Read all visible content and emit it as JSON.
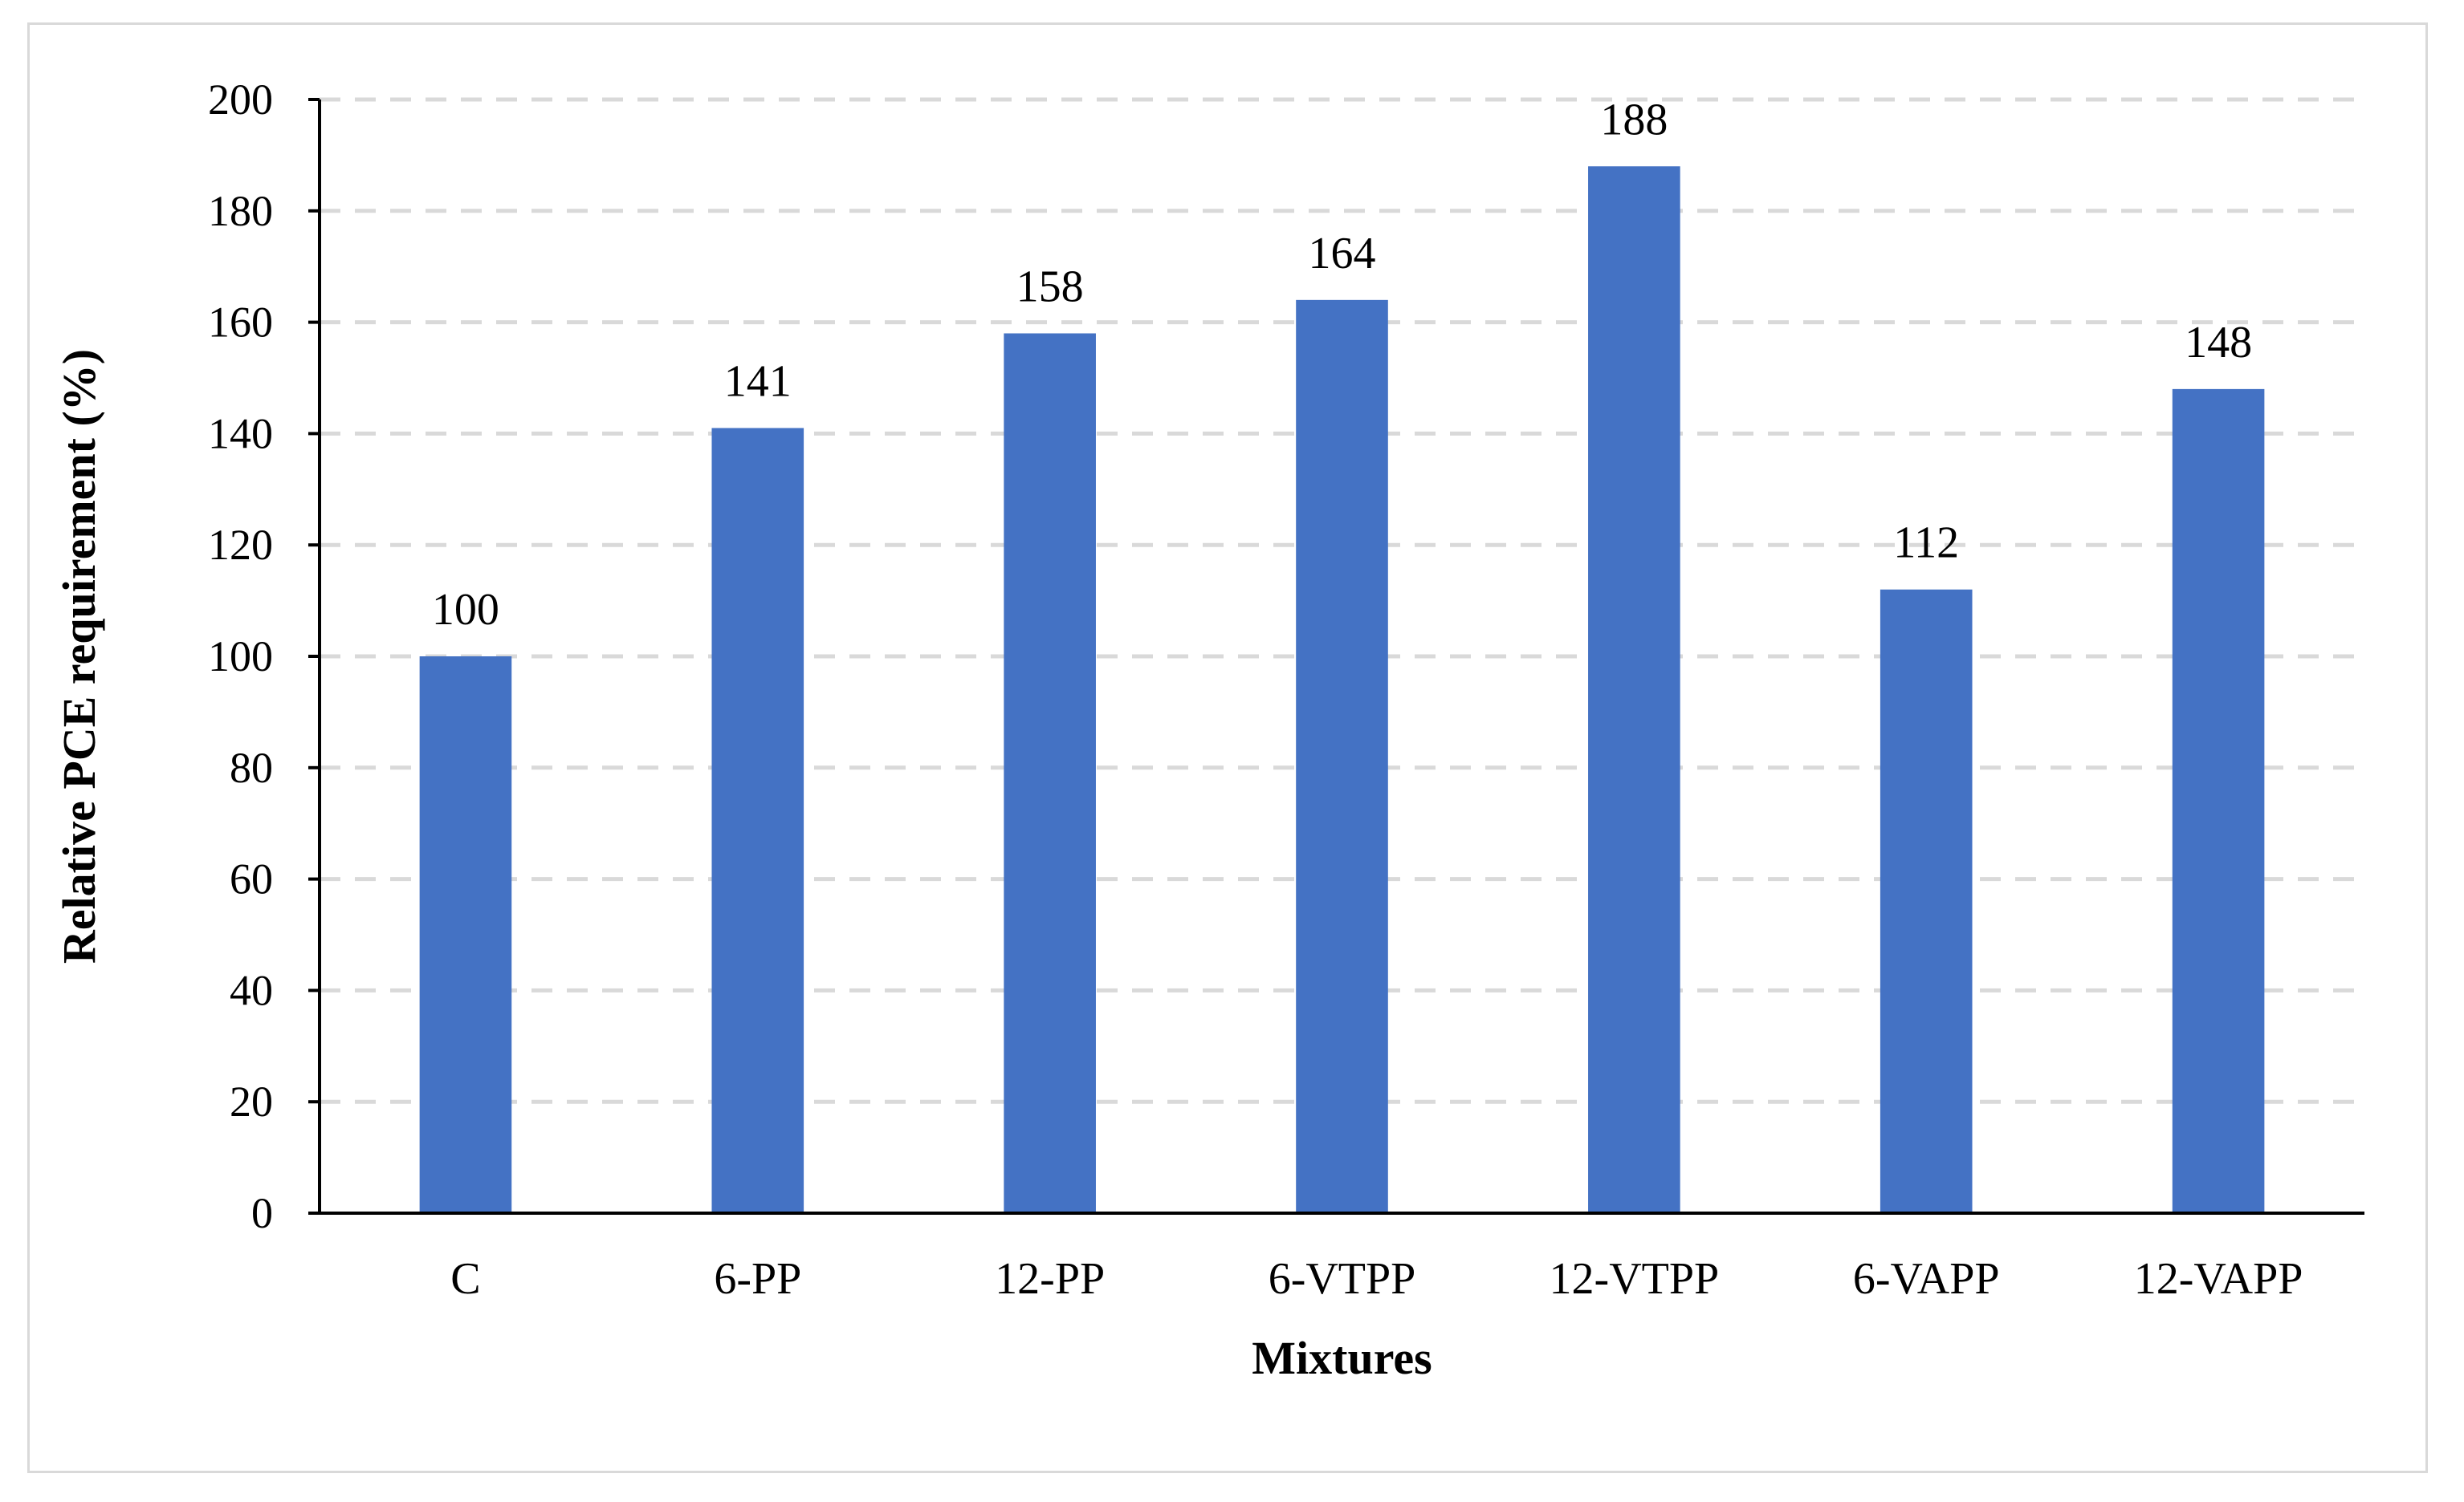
{
  "chart_data": {
    "type": "bar",
    "title": "",
    "xlabel": "Mixtures",
    "ylabel": "Relative PCE requirement (%)",
    "categories": [
      "C",
      "6-PP",
      "12-PP",
      "6-VTPP",
      "12-VTPP",
      "6-VAPP",
      "12-VAPP"
    ],
    "values": [
      100,
      141,
      158,
      164,
      188,
      112,
      148
    ],
    "data_labels": [
      "100",
      "141",
      "158",
      "164",
      "188",
      "112",
      "148"
    ],
    "ylim": [
      0,
      200
    ],
    "yticks": [
      "0",
      "20",
      "40",
      "60",
      "80",
      "100",
      "120",
      "140",
      "160",
      "180",
      "200"
    ],
    "grid": true,
    "legend": "none",
    "bar_color": "#4472c4",
    "grid_color": "#d9d9d9"
  }
}
